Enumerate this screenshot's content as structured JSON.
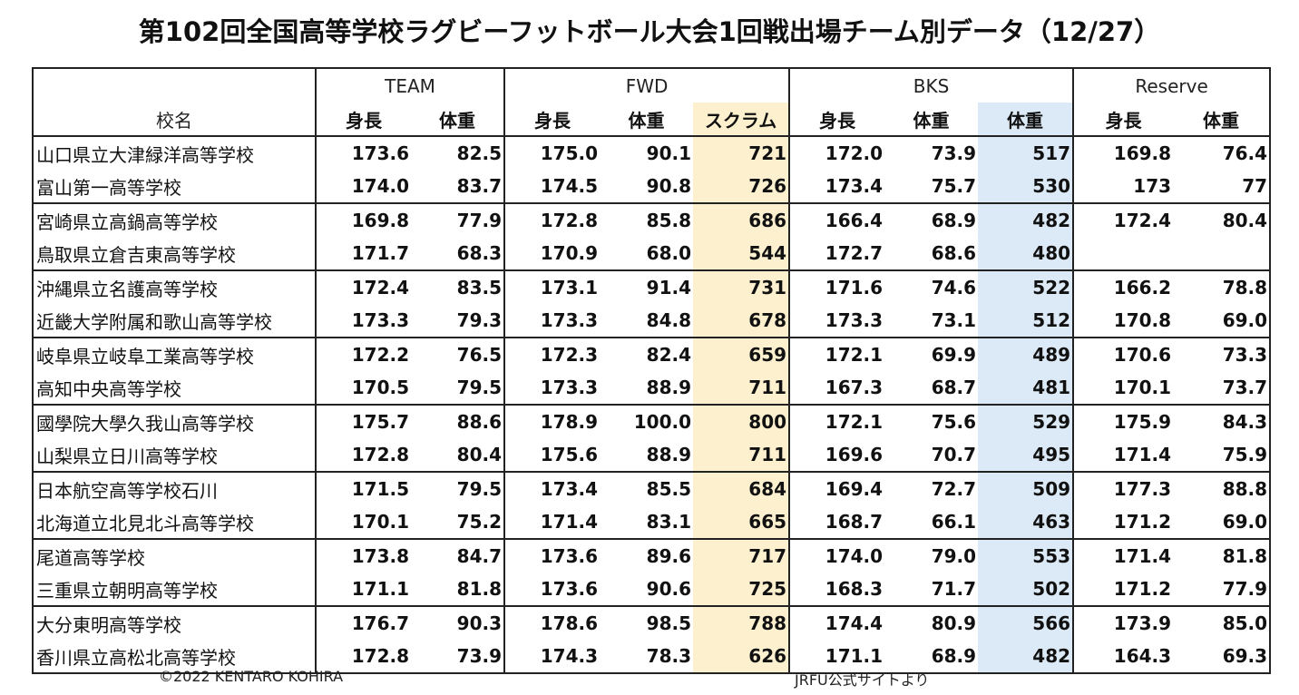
{
  "title": "第102回全国高等学校ラグビーフットボール大会1回戦出場チーム別データ（12/27）",
  "groups": {
    "team": "TEAM",
    "fwd": "FWD",
    "bks": "BKS",
    "reserve": "Reserve"
  },
  "subheaders": {
    "school": "校名",
    "team_height": "身長",
    "team_weight": "体重",
    "fwd_height": "身長",
    "fwd_weight": "体重",
    "fwd_scrum": "スクラム",
    "bks_height": "身長",
    "bks_weight": "体重",
    "bks_total_weight": "体重",
    "res_height": "身長",
    "res_weight": "体重"
  },
  "colors": {
    "scrum_highlight": "#fdf0cf",
    "bks_weight_highlight": "#dce9f6"
  },
  "rows": [
    {
      "school": "山口県立大津緑洋高等学校",
      "team_h": "173.6",
      "team_w": "82.5",
      "fwd_h": "175.0",
      "fwd_w": "90.1",
      "scrum": "721",
      "bks_h": "172.0",
      "bks_w": "73.9",
      "bks_total": "517",
      "res_h": "169.8",
      "res_w": "76.4"
    },
    {
      "school": "富山第一高等学校",
      "team_h": "174.0",
      "team_w": "83.7",
      "fwd_h": "174.5",
      "fwd_w": "90.8",
      "scrum": "726",
      "bks_h": "173.4",
      "bks_w": "75.7",
      "bks_total": "530",
      "res_h": "173",
      "res_w": "77"
    },
    {
      "school": "宮崎県立高鍋高等学校",
      "team_h": "169.8",
      "team_w": "77.9",
      "fwd_h": "172.8",
      "fwd_w": "85.8",
      "scrum": "686",
      "bks_h": "166.4",
      "bks_w": "68.9",
      "bks_total": "482",
      "res_h": "172.4",
      "res_w": "80.4"
    },
    {
      "school": "鳥取県立倉吉東高等学校",
      "team_h": "171.7",
      "team_w": "68.3",
      "fwd_h": "170.9",
      "fwd_w": "68.0",
      "scrum": "544",
      "bks_h": "172.7",
      "bks_w": "68.6",
      "bks_total": "480",
      "res_h": "",
      "res_w": ""
    },
    {
      "school": "沖縄県立名護高等学校",
      "team_h": "172.4",
      "team_w": "83.5",
      "fwd_h": "173.1",
      "fwd_w": "91.4",
      "scrum": "731",
      "bks_h": "171.6",
      "bks_w": "74.6",
      "bks_total": "522",
      "res_h": "166.2",
      "res_w": "78.8"
    },
    {
      "school": "近畿大学附属和歌山高等学校",
      "team_h": "173.3",
      "team_w": "79.3",
      "fwd_h": "173.3",
      "fwd_w": "84.8",
      "scrum": "678",
      "bks_h": "173.3",
      "bks_w": "73.1",
      "bks_total": "512",
      "res_h": "170.8",
      "res_w": "69.0"
    },
    {
      "school": "岐阜県立岐阜工業高等学校",
      "team_h": "172.2",
      "team_w": "76.5",
      "fwd_h": "172.3",
      "fwd_w": "82.4",
      "scrum": "659",
      "bks_h": "172.1",
      "bks_w": "69.9",
      "bks_total": "489",
      "res_h": "170.6",
      "res_w": "73.3"
    },
    {
      "school": "高知中央高等学校",
      "team_h": "170.5",
      "team_w": "79.5",
      "fwd_h": "173.3",
      "fwd_w": "88.9",
      "scrum": "711",
      "bks_h": "167.3",
      "bks_w": "68.7",
      "bks_total": "481",
      "res_h": "170.1",
      "res_w": "73.7"
    },
    {
      "school": "國學院大學久我山高等学校",
      "team_h": "175.7",
      "team_w": "88.6",
      "fwd_h": "178.9",
      "fwd_w": "100.0",
      "scrum": "800",
      "bks_h": "172.1",
      "bks_w": "75.6",
      "bks_total": "529",
      "res_h": "175.9",
      "res_w": "84.3"
    },
    {
      "school": "山梨県立日川高等学校",
      "team_h": "172.8",
      "team_w": "80.4",
      "fwd_h": "175.6",
      "fwd_w": "88.9",
      "scrum": "711",
      "bks_h": "169.6",
      "bks_w": "70.7",
      "bks_total": "495",
      "res_h": "171.4",
      "res_w": "75.9"
    },
    {
      "school": "日本航空高等学校石川",
      "team_h": "171.5",
      "team_w": "79.5",
      "fwd_h": "173.4",
      "fwd_w": "85.5",
      "scrum": "684",
      "bks_h": "169.4",
      "bks_w": "72.7",
      "bks_total": "509",
      "res_h": "177.3",
      "res_w": "88.8"
    },
    {
      "school": "北海道立北見北斗高等学校",
      "team_h": "170.1",
      "team_w": "75.2",
      "fwd_h": "171.4",
      "fwd_w": "83.1",
      "scrum": "665",
      "bks_h": "168.7",
      "bks_w": "66.1",
      "bks_total": "463",
      "res_h": "171.2",
      "res_w": "69.0"
    },
    {
      "school": "尾道高等学校",
      "team_h": "173.8",
      "team_w": "84.7",
      "fwd_h": "173.6",
      "fwd_w": "89.6",
      "scrum": "717",
      "bks_h": "174.0",
      "bks_w": "79.0",
      "bks_total": "553",
      "res_h": "171.4",
      "res_w": "81.8"
    },
    {
      "school": "三重県立朝明高等学校",
      "team_h": "171.1",
      "team_w": "81.8",
      "fwd_h": "173.6",
      "fwd_w": "90.6",
      "scrum": "725",
      "bks_h": "168.3",
      "bks_w": "71.7",
      "bks_total": "502",
      "res_h": "171.2",
      "res_w": "77.9"
    },
    {
      "school": "大分東明高等学校",
      "team_h": "176.7",
      "team_w": "90.3",
      "fwd_h": "178.6",
      "fwd_w": "98.5",
      "scrum": "788",
      "bks_h": "174.4",
      "bks_w": "80.9",
      "bks_total": "566",
      "res_h": "173.9",
      "res_w": "85.0"
    },
    {
      "school": "香川県立高松北高等学校",
      "team_h": "172.8",
      "team_w": "73.9",
      "fwd_h": "174.3",
      "fwd_w": "78.3",
      "scrum": "626",
      "bks_h": "171.1",
      "bks_w": "68.9",
      "bks_total": "482",
      "res_h": "164.3",
      "res_w": "69.3"
    }
  ],
  "footer": {
    "copyright": "©2022 KENTARO KOHIRA",
    "source": "JRFU公式サイトより"
  }
}
